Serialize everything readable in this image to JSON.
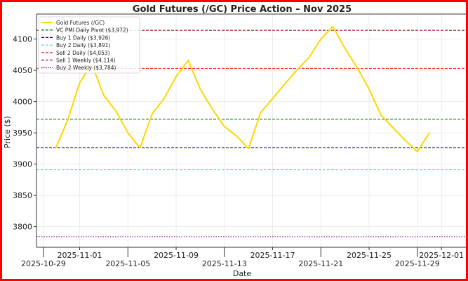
{
  "chart_data": {
    "type": "line",
    "title": "Gold Futures (/GC) Price Action – Nov 2025",
    "xlabel": "Date",
    "ylabel": "Price ($)",
    "ylim": [
      3767,
      4140
    ],
    "xlim": [
      "2025-10-28",
      "2025-12-03"
    ],
    "grid": true,
    "legend_placement": "top-left",
    "x_ticks": [
      "2025-10-29",
      "2025-11-01",
      "2025-11-05",
      "2025-11-09",
      "2025-11-13",
      "2025-11-17",
      "2025-11-21",
      "2025-11-25",
      "2025-11-29",
      "2025-12-01"
    ],
    "y_ticks": [
      3800,
      3850,
      3900,
      3950,
      4000,
      4050,
      4100
    ],
    "series": [
      {
        "name": "Gold Futures (/GC)",
        "color": "#FFD700",
        "x": [
          "2025-10-30",
          "2025-10-31",
          "2025-11-01",
          "2025-11-02",
          "2025-11-03",
          "2025-11-04",
          "2025-11-05",
          "2025-11-06",
          "2025-11-07",
          "2025-11-08",
          "2025-11-09",
          "2025-11-10",
          "2025-11-11",
          "2025-11-12",
          "2025-11-13",
          "2025-11-14",
          "2025-11-15",
          "2025-11-16",
          "2025-11-17",
          "2025-11-18",
          "2025-11-19",
          "2025-11-20",
          "2025-11-21",
          "2025-11-22",
          "2025-11-23",
          "2025-11-24",
          "2025-11-25",
          "2025-11-26",
          "2025-11-27",
          "2025-11-28",
          "2025-11-29",
          "2025-11-30"
        ],
        "values": [
          3925,
          3970,
          4030,
          4060,
          4010,
          3985,
          3950,
          3926,
          3980,
          4005,
          4040,
          4066,
          4020,
          3988,
          3960,
          3945,
          3925,
          3982,
          4005,
          4028,
          4050,
          4070,
          4100,
          4120,
          4085,
          4055,
          4020,
          3978,
          3958,
          3938,
          3920,
          3950
        ]
      }
    ],
    "hlines": [
      {
        "name": "VC PMI Daily Pivot ($3,972)",
        "value": 3972,
        "color": "#008000",
        "style": "dashed"
      },
      {
        "name": "Buy 1 Daily ($3,926)",
        "value": 3926,
        "color": "#000080",
        "style": "dashed"
      },
      {
        "name": "Buy 2 Daily ($3,891)",
        "value": 3891,
        "color": "#66cdcd",
        "style": "dashed"
      },
      {
        "name": "Sell 2 Daily ($4,053)",
        "value": 4053,
        "color": "#ff3333",
        "style": "dashed"
      },
      {
        "name": "Sell 1 Weekly ($4,114)",
        "value": 4114,
        "color": "#8b1a1a",
        "style": "dashed"
      },
      {
        "name": "Buy 2 Weekly ($3,784)",
        "value": 3784,
        "color": "#800080",
        "style": "dotted"
      }
    ]
  }
}
